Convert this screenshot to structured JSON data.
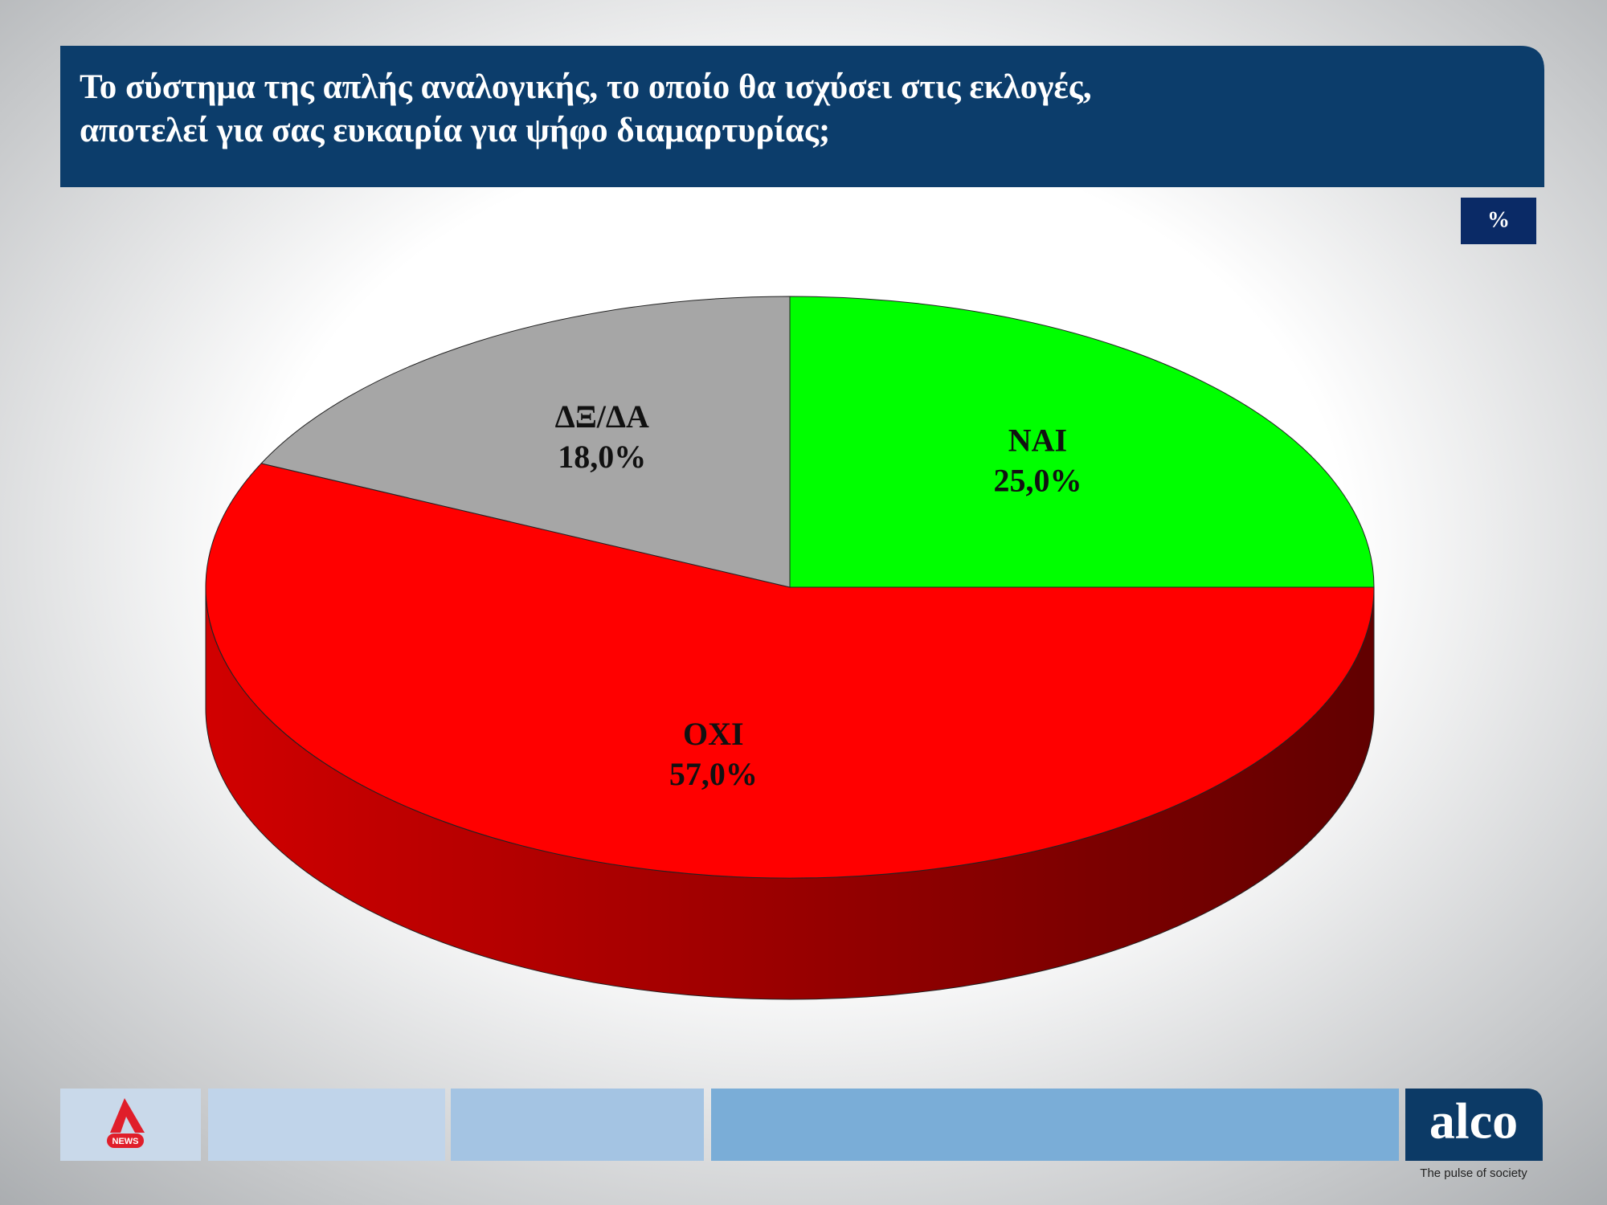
{
  "chart_data": {
    "type": "pie",
    "title": [
      "Το σύστημα της απλής αναλογικής, το οποίο θα ισχύσει στις εκλογές,",
      "αποτελεί για σας ευκαιρία για ψήφο διαμαρτυρίας;"
    ],
    "unit_label": "%",
    "categories": [
      "ΝΑΙ",
      "ΟΧΙ",
      "ΔΞ/ΔΑ"
    ],
    "values": [
      25,
      57,
      18
    ],
    "value_labels": [
      "25,0%",
      "57,0%",
      "18,0%"
    ],
    "colors": [
      "#00ff00",
      "#ff0000",
      "#a6a6a6"
    ]
  },
  "footer": {
    "logo_text": "NEWS",
    "brand": "alco",
    "tagline": "The pulse of society"
  }
}
